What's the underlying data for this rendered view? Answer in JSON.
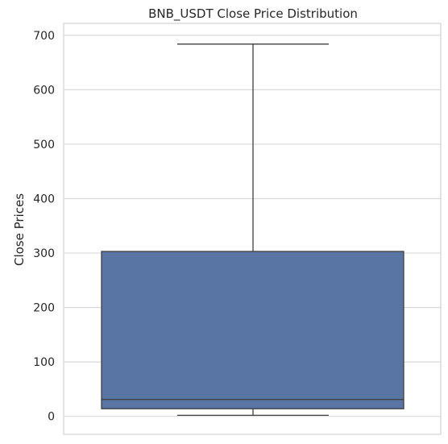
{
  "chart_data": {
    "type": "box",
    "title": "BNB_USDT Close Price Distribution",
    "xlabel": "",
    "ylabel": "Close Prices",
    "ylim": [
      -33,
      722
    ],
    "yticks": [
      0,
      100,
      200,
      300,
      400,
      500,
      600,
      700
    ],
    "grid": "y-horizontal",
    "box": {
      "min": 2,
      "q1": 14,
      "median": 31,
      "q3": 303,
      "max": 684
    },
    "colors": {
      "box_fill": "#5875a4",
      "box_edge": "#3f3f3f",
      "grid": "#d9d9d9",
      "axes_edge": "#d0d0d0"
    }
  }
}
